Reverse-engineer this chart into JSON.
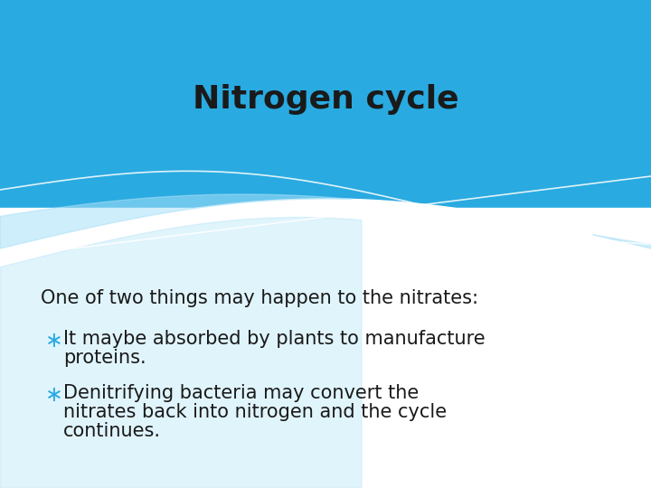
{
  "title": "Nitrogen cycle",
  "title_color": "#1a1a1a",
  "title_fontsize": 26,
  "title_fontweight": "bold",
  "background_color": "#ffffff",
  "header_blue": "#29aae1",
  "header_light_blue": "#7ed4f5",
  "wave_fill": "#a8e0f8",
  "intro_text": "One of two things may happen to the nitrates:",
  "intro_fontsize": 15,
  "intro_color": "#1a1a1a",
  "bullet_color": "#29aae1",
  "bullet_symbol": "∗",
  "bullet_fontsize": 17,
  "text_color": "#1a1a1a",
  "text_fontsize": 15,
  "bullets": [
    [
      "It maybe absorbed by plants to manufacture",
      "proteins."
    ],
    [
      "Denitrifying bacteria may convert the",
      "nitrates back into nitrogen and the cycle",
      "continues."
    ]
  ]
}
